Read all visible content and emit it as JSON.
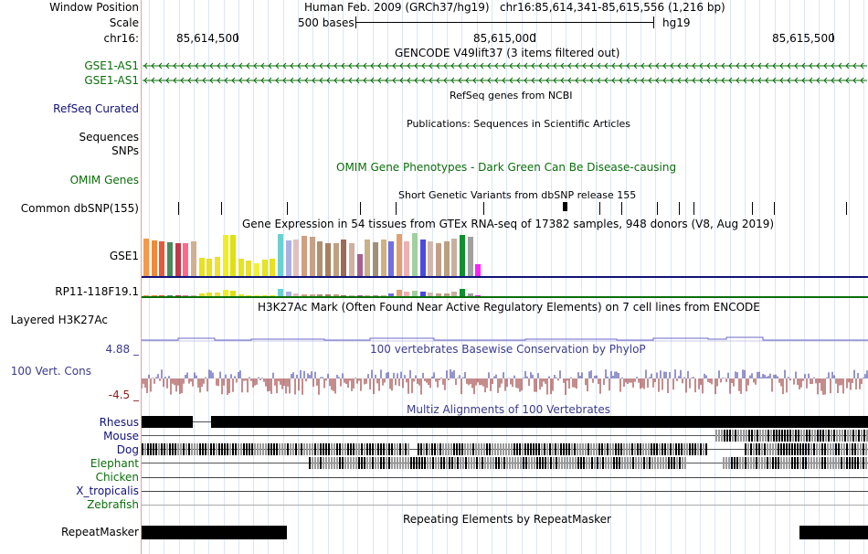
{
  "labels": {
    "window_position": "Window Position",
    "scale": "Scale",
    "chrom": "chr16:",
    "gse1_as1_a": "GSE1-AS1",
    "gse1_as1_b": "GSE1-AS1",
    "refseq": "RefSeq Curated",
    "sequences": "Sequences",
    "snps": "SNPs",
    "omim": "OMIM Genes",
    "dbsnp": "Common dbSNP(155)",
    "gse1": "GSE1",
    "rp11": "RP11-118F19.1",
    "h3k27ac": "Layered H3K27Ac",
    "cons_max": "4.88 _",
    "cons": "100 Vert. Cons",
    "cons_min": "-4.5 _",
    "rhesus": "Rhesus",
    "mouse": "Mouse",
    "dog": "Dog",
    "elephant": "Elephant",
    "chicken": "Chicken",
    "xtrop": "X_tropicalis",
    "zebrafish": "Zebrafish",
    "repeatmasker": "RepeatMasker"
  },
  "header": {
    "assembly": "Human Feb. 2009 (GRCh37/hg19)",
    "position": "chr16:85,614,341-85,615,556 (1,216 bp)",
    "scale_text": "500 bases",
    "db": "hg19",
    "ruler": [
      "85,614,500",
      "85,615,000",
      "85,615,500"
    ]
  },
  "titles": {
    "gencode": "GENCODE V49lift37 (3 items filtered out)",
    "refseq": "RefSeq genes from NCBI",
    "publications": "Publications: Sequences in Scientific Articles",
    "omim": "OMIM Gene Phenotypes - Dark Green Can Be Disease-causing",
    "dbsnp": "Short Genetic Variants from dbSNP release 155",
    "gtex": "Gene Expression in 54 tissues from GTEx RNA-seq of 17382 samples, 948 donors (V8, Aug 2019)",
    "h3k27ac": "H3K27Ac Mark (Often Found Near Active Regulatory Elements) on 7 cell lines from ENCODE",
    "phylop": "100 vertebrates Basewise Conservation by PhyloP",
    "multiz": "Multiz Alignments of 100 Vertebrates",
    "repeatmasker": "Repeating Elements by RepeatMasker"
  },
  "colors": {
    "gene": "#0a6e0a",
    "refseq_label": "#12127a",
    "cons_label": "#3b3b8f",
    "cons_pos": "#2b2b9a",
    "cons_neg": "#8b1a1a",
    "grid": "#dbe6f7"
  },
  "gtex": {
    "gse1_colors": [
      "#f39a4a",
      "#f08a3a",
      "#e45a3a",
      "#4a8a5a",
      "#c03a4a",
      "#ff6a8a",
      "#d0b090",
      "#e8e020",
      "#e8e020",
      "#f0e030",
      "#eeee20",
      "#e0e010",
      "#e4e420",
      "#e8e030",
      "#f0f040",
      "#e4e420",
      "#e8e020",
      "#6ad0d0",
      "#aab0e0",
      "#e0c0c0",
      "#d0a080",
      "#c8a088",
      "#b09070",
      "#a88060",
      "#c0a080",
      "#9a6a5a",
      "#d0b0a0",
      "#a86090",
      "#c8b088",
      "#a09078",
      "#d0b080",
      "#7070e0",
      "#e0a070",
      "#f0b0b0",
      "#a0d0a0",
      "#4a4ae0",
      "#d0b8b0",
      "#c0a088",
      "#b8a080",
      "#c8b0a0",
      "#109030",
      "#a0a0a0",
      "#ff20ff"
    ],
    "gse1_values": [
      0.85,
      0.82,
      0.8,
      0.77,
      0.75,
      0.74,
      0.8,
      0.42,
      0.4,
      0.44,
      0.93,
      0.93,
      0.4,
      0.36,
      0.3,
      0.38,
      0.4,
      0.95,
      0.82,
      0.84,
      0.91,
      0.9,
      0.8,
      0.74,
      0.76,
      0.84,
      0.76,
      0.5,
      0.84,
      0.78,
      0.84,
      0.8,
      0.96,
      0.8,
      0.98,
      0.84,
      0.8,
      0.76,
      0.8,
      0.86,
      0.93,
      0.9,
      0.28
    ],
    "rp11_values": [
      0.1,
      0.1,
      0.05,
      0.05,
      0.05,
      0.05,
      0.1,
      0.3,
      0.4,
      0.45,
      0.75,
      0.7,
      0.2,
      0.1,
      0.1,
      0.1,
      0.1,
      0.9,
      0.5,
      0.3,
      0.25,
      0.25,
      0.2,
      0.25,
      0.2,
      0.1,
      0.1,
      0.1,
      0.1,
      0.1,
      0.1,
      0.3,
      0.8,
      0.5,
      0.7,
      0.5,
      0.4,
      0.3,
      0.3,
      0.5,
      0.9,
      0.3,
      0.1
    ]
  },
  "dbsnp_positions": [
    0.05,
    0.11,
    0.2,
    0.3,
    0.35,
    0.47,
    0.58,
    0.63,
    0.66,
    0.71,
    0.74,
    0.76,
    0.84,
    0.87,
    0.97
  ],
  "repeatmasker_blocks": [
    [
      0.0,
      0.2
    ],
    [
      0.906,
      1.0
    ]
  ]
}
